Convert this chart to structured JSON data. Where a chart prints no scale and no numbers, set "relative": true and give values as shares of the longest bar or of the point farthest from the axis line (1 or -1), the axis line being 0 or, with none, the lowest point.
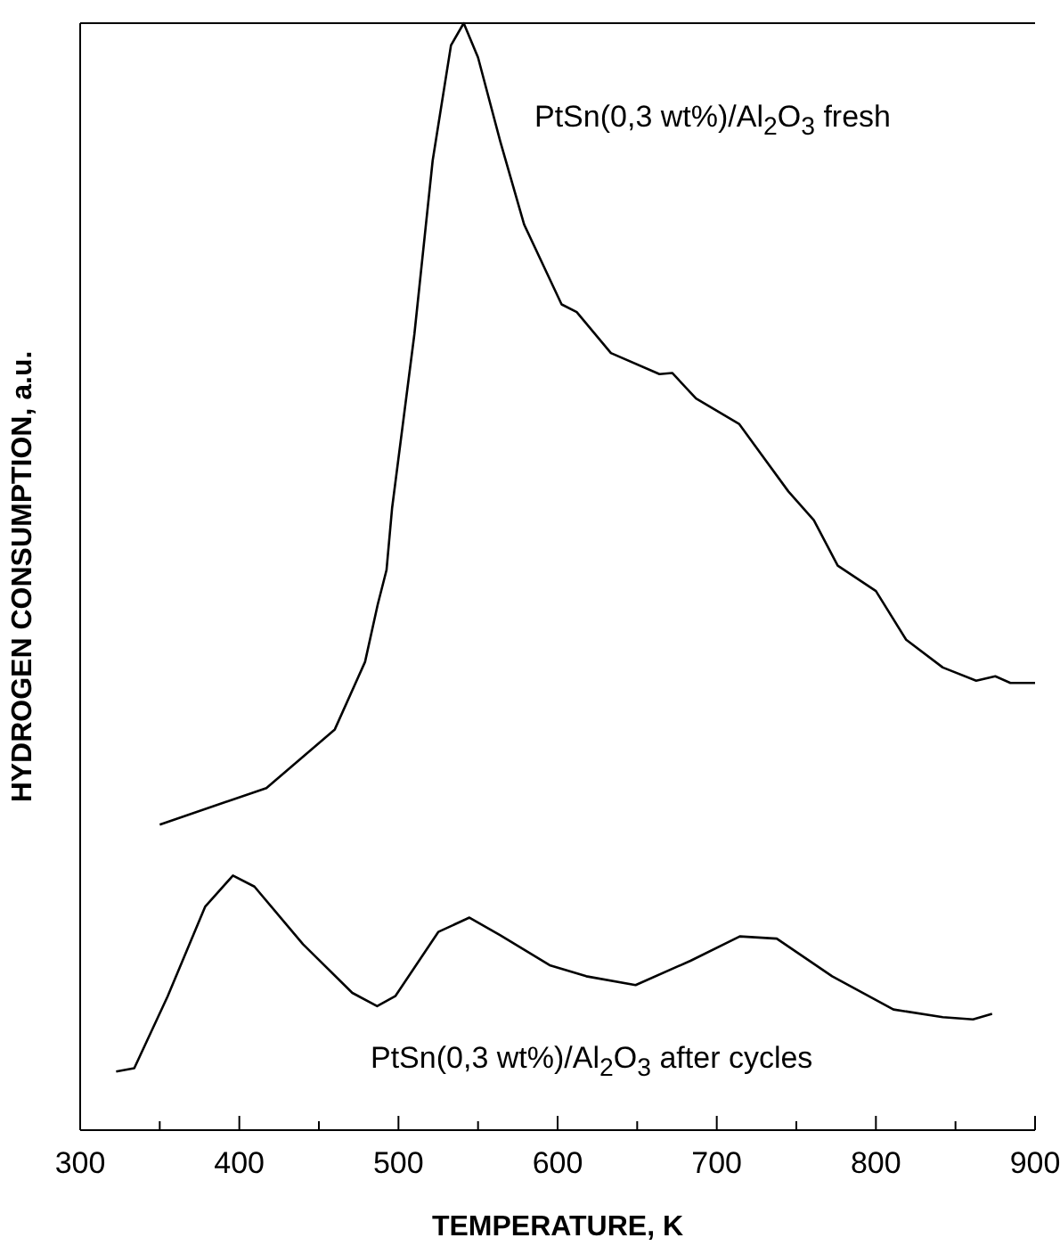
{
  "chart_data": {
    "type": "line",
    "relative": true,
    "xlabel": "TEMPERATURE, K",
    "ylabel": "HYDROGEN CONSUMPTION, a.u.",
    "xlim": [
      300,
      900
    ],
    "xticks": [
      300,
      {
        "value": 350,
        "label": null
      },
      400,
      {
        "value": 450,
        "label": null
      },
      500,
      {
        "value": 550,
        "label": null
      },
      600,
      {
        "value": 650,
        "label": null
      },
      700,
      {
        "value": 750,
        "label": null
      },
      800,
      {
        "value": 850,
        "label": null
      },
      900
    ],
    "series": [
      {
        "name": "PtSn(0,3 wt%)/Al$_{2}$O$_{3}$ fresh",
        "color": "#000000",
        "x": [
          350,
          417,
          460,
          479,
          487,
          492.5,
          496,
          510,
          521.5,
          533,
          541,
          550,
          564,
          579,
          602.5,
          612,
          633.5,
          664,
          672,
          687,
          714,
          745,
          761,
          776,
          800,
          819,
          842,
          863,
          875,
          884.5,
          900
        ],
        "values": [
          0.276,
          0.309,
          0.362,
          0.423,
          0.475,
          0.506,
          0.562,
          0.719,
          0.876,
          0.98,
          1.0,
          0.969,
          0.893,
          0.818,
          0.746,
          0.739,
          0.702,
          0.683,
          0.684,
          0.661,
          0.638,
          0.577,
          0.551,
          0.51,
          0.487,
          0.443,
          0.418,
          0.406,
          0.41,
          0.404,
          0.404
        ]
      },
      {
        "name": "PtSn(0,3 wt%)/Al$_{2}$O$_{3}$ after cycles",
        "color": "#000000",
        "x": [
          322.6,
          334,
          355,
          378.6,
          396,
          409.5,
          440,
          471,
          486.6,
          498,
          525,
          544.6,
          564,
          595,
          618,
          649,
          683.5,
          714.5,
          737.7,
          772.5,
          811,
          842,
          861,
          873
        ],
        "values": [
          0.053,
          0.056,
          0.121,
          0.202,
          0.23,
          0.22,
          0.168,
          0.124,
          0.112,
          0.121,
          0.179,
          0.192,
          0.176,
          0.149,
          0.139,
          0.131,
          0.153,
          0.175,
          0.173,
          0.139,
          0.109,
          0.102,
          0.1,
          0.105
        ]
      }
    ]
  }
}
